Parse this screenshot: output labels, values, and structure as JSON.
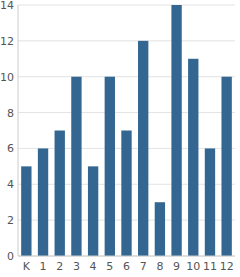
{
  "chart_data": {
    "type": "bar",
    "categories": [
      "K",
      "1",
      "2",
      "3",
      "4",
      "5",
      "6",
      "7",
      "8",
      "9",
      "10",
      "11",
      "12"
    ],
    "values": [
      5,
      6,
      7,
      10,
      5,
      10,
      7,
      12,
      3,
      14,
      11,
      6,
      10
    ],
    "color": "#336791",
    "ylim": [
      0,
      14
    ],
    "yticks": [
      0,
      2,
      4,
      6,
      8,
      10,
      12,
      14
    ],
    "grid": true
  }
}
